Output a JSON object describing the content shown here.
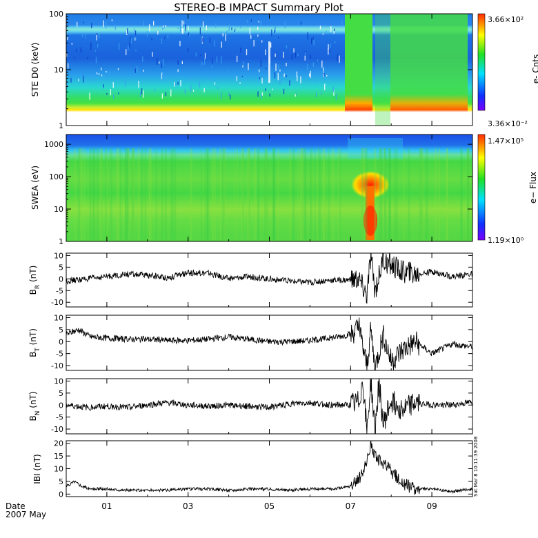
{
  "title": "STEREO-B IMPACT Summary Plot",
  "date_label": "Date",
  "date_sublabel": "2007 May",
  "side_stamp": "Sat Mar  8 10:11:39 2008",
  "x_axis": {
    "ticks": [
      {
        "label": "01",
        "x": 1
      },
      {
        "label": "03",
        "x": 3
      },
      {
        "label": "05",
        "x": 5
      },
      {
        "label": "07",
        "x": 7
      },
      {
        "label": "09",
        "x": 9
      }
    ],
    "xlim": [
      0,
      10
    ]
  },
  "chart_data": [
    {
      "type": "heatmap",
      "ylabel": "STE D0 (keV)",
      "yscale": "log",
      "ylim": [
        1,
        100
      ],
      "yticks": [
        "1",
        "10",
        "100"
      ],
      "colorbar": {
        "max_label": "3.66×10²",
        "min_label": "3.36×10⁻²",
        "title": "e- Cnts"
      },
      "features": [
        {
          "x_start": 7.0,
          "x_end": 7.6,
          "note": "enhanced flux"
        },
        {
          "x_start": 7.9,
          "x_end": 9.9,
          "note": "enhanced flux"
        }
      ]
    },
    {
      "type": "heatmap",
      "ylabel": "SWEA (eV)",
      "yscale": "log",
      "ylim": [
        1,
        2000
      ],
      "yticks": [
        "1",
        "10",
        "100",
        "1000"
      ],
      "colorbar": {
        "max_label": "1.47×10⁵",
        "min_label": "1.19×10⁰",
        "title": "e− Flux"
      },
      "features": [
        {
          "x": 7.5,
          "note": "strong enhancement 3–100 eV"
        }
      ]
    },
    {
      "type": "line",
      "ylabel_main": "B",
      "ylabel_sub": "R",
      "ylabel_unit": " (nT)",
      "ylim": [
        -12,
        11
      ],
      "yticks": [
        10,
        5,
        0,
        -5,
        -10
      ],
      "series": [
        {
          "x": [
            0,
            0.5,
            1,
            1.5,
            2,
            2.5,
            3,
            3.5,
            4,
            4.5,
            5,
            5.5,
            6,
            6.5,
            7,
            7.2,
            7.4,
            7.5,
            7.6,
            7.8,
            8,
            8.3,
            8.6,
            9,
            9.5,
            9.9
          ],
          "values": [
            -1,
            0,
            1,
            2,
            1.5,
            0.5,
            2.5,
            2.5,
            0,
            1,
            0,
            -1,
            -1.5,
            -0.5,
            -0.5,
            0,
            -7,
            10,
            -5,
            8,
            6,
            3,
            2,
            3,
            1,
            2
          ]
        }
      ]
    },
    {
      "type": "line",
      "ylabel_main": "B",
      "ylabel_sub": "T",
      "ylabel_unit": " (nT)",
      "ylim": [
        -12,
        11
      ],
      "yticks": [
        10,
        5,
        0,
        -5,
        -10
      ],
      "series": [
        {
          "x": [
            0,
            0.3,
            0.6,
            1,
            1.5,
            2,
            2.5,
            3,
            3.5,
            4,
            4.5,
            5,
            5.5,
            6,
            6.5,
            7,
            7.2,
            7.4,
            7.5,
            7.6,
            7.8,
            8,
            8.3,
            8.6,
            9,
            9.5,
            9.9
          ],
          "values": [
            3,
            5,
            2,
            1.5,
            1,
            1,
            0.5,
            0.5,
            1,
            2,
            1,
            0,
            0,
            0.5,
            1.5,
            3,
            6,
            -10,
            5,
            -11,
            3,
            -8,
            -3,
            0,
            -5,
            -1,
            -2
          ]
        }
      ]
    },
    {
      "type": "line",
      "ylabel_main": "B",
      "ylabel_sub": "N",
      "ylabel_unit": " (nT)",
      "ylim": [
        -12,
        11
      ],
      "yticks": [
        10,
        5,
        0,
        -5,
        -10
      ],
      "series": [
        {
          "x": [
            0,
            0.5,
            1,
            1.5,
            2,
            2.5,
            3,
            3.5,
            4,
            4.5,
            5,
            5.5,
            6,
            6.5,
            7,
            7.2,
            7.3,
            7.4,
            7.5,
            7.6,
            7.7,
            7.8,
            8,
            8.3,
            8.6,
            9,
            9.5,
            9.9
          ],
          "values": [
            0,
            -1,
            -0.5,
            -1,
            0,
            1,
            0,
            -0.5,
            0,
            -0.5,
            -1,
            0.5,
            1,
            0,
            0,
            1,
            10,
            -11,
            10,
            -11,
            10,
            -8,
            2,
            -2,
            1,
            0,
            0,
            1
          ]
        }
      ]
    },
    {
      "type": "line",
      "ylabel": "IBI (nT)",
      "ylim": [
        -1,
        21
      ],
      "yticks": [
        20,
        15,
        10,
        5,
        0
      ],
      "series": [
        {
          "x": [
            0,
            0.2,
            0.4,
            0.6,
            1,
            1.5,
            2,
            2.5,
            3,
            3.5,
            4,
            4.5,
            5,
            5.5,
            6,
            6.5,
            7,
            7.2,
            7.4,
            7.5,
            7.6,
            7.8,
            8,
            8.3,
            8.6,
            9,
            9.5,
            9.9
          ],
          "values": [
            3,
            5,
            3,
            2,
            2,
            1.5,
            1.5,
            1.5,
            2,
            2,
            1.5,
            2,
            2,
            1.5,
            2,
            2,
            3,
            6,
            12,
            20,
            15,
            12,
            9,
            4,
            2,
            2,
            1,
            2
          ]
        }
      ]
    }
  ]
}
